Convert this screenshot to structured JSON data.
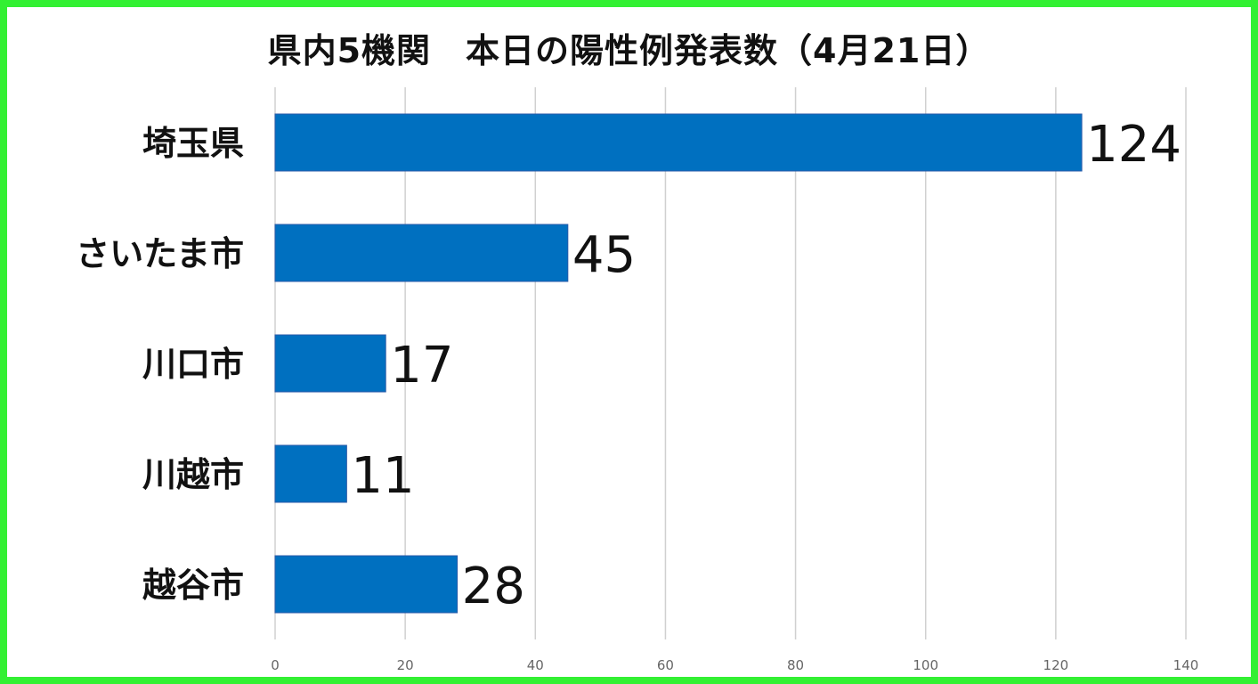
{
  "chart_data": {
    "type": "bar",
    "orientation": "horizontal",
    "title": "県内5機関　本日の陽性例発表数（4月21日）",
    "categories": [
      "埼玉県",
      "さいたま市",
      "川口市",
      "川越市",
      "越谷市"
    ],
    "values": [
      124,
      45,
      17,
      11,
      28
    ],
    "value_labels": [
      "124",
      "45",
      "17",
      "11",
      "28"
    ],
    "xlim": [
      0,
      140
    ],
    "x_ticks": [
      0,
      20,
      40,
      60,
      80,
      100,
      120,
      140
    ],
    "x_tick_labels": [
      "0",
      "20",
      "40",
      "60",
      "80",
      "100",
      "120",
      "140"
    ],
    "grid": "vertical",
    "legend": "none",
    "bar_color": "#0070c0",
    "frame_color": "#33f033"
  }
}
